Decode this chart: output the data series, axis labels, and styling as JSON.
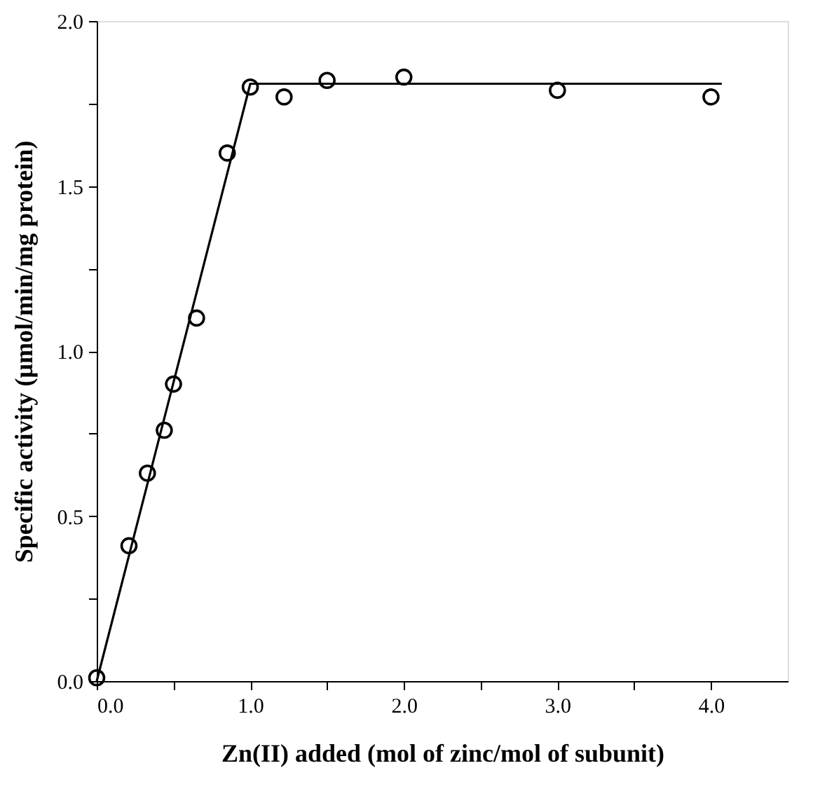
{
  "chart_data": {
    "type": "scatter",
    "xlabel": "Zn(II) added (mol of zinc/mol of subunit)",
    "ylabel": "Specific activity (μmol/min/mg protein)",
    "xlim": [
      0,
      4.5
    ],
    "ylim": [
      0,
      2.0
    ],
    "xticks": [
      {
        "value": 0,
        "label": "0.0"
      },
      {
        "value": 0.5,
        "label": null
      },
      {
        "value": 1,
        "label": "1.0"
      },
      {
        "value": 1.5,
        "label": null
      },
      {
        "value": 2,
        "label": "2.0"
      },
      {
        "value": 2.5,
        "label": null
      },
      {
        "value": 3,
        "label": "3.0"
      },
      {
        "value": 3.5,
        "label": null
      },
      {
        "value": 4,
        "label": "4.0"
      }
    ],
    "yticks": [
      {
        "value": 0,
        "label": "0.0"
      },
      {
        "value": 0.25,
        "label": null
      },
      {
        "value": 0.5,
        "label": "0.5"
      },
      {
        "value": 0.75,
        "label": null
      },
      {
        "value": 1,
        "label": "1.0"
      },
      {
        "value": 1.25,
        "label": null
      },
      {
        "value": 1.5,
        "label": "1.5"
      },
      {
        "value": 1.75,
        "label": null
      },
      {
        "value": 2,
        "label": "2.0"
      }
    ],
    "grid": false,
    "series": [
      {
        "color": "#000000",
        "marker": "circle",
        "x": [
          0,
          0.21,
          0.33,
          0.44,
          0.5,
          0.65,
          0.85,
          1.0,
          1.22,
          1.5,
          2.0,
          3.0,
          4.0
        ],
        "values": [
          0.01,
          0.41,
          0.63,
          0.76,
          0.9,
          1.1,
          1.6,
          1.8,
          1.77,
          1.82,
          1.83,
          1.79,
          1.77
        ]
      },
      {
        "type": "line",
        "color": "#000000",
        "line_style": "solid",
        "x": [
          0,
          1.0,
          4.07
        ],
        "values": [
          0,
          1.81,
          1.81
        ]
      }
    ]
  }
}
